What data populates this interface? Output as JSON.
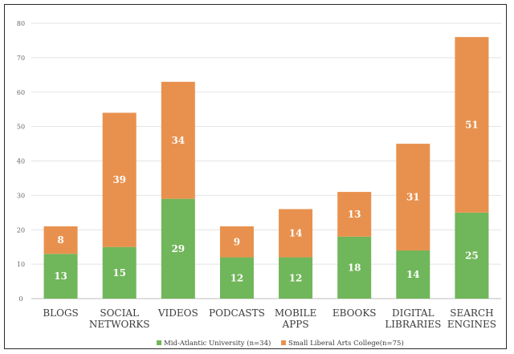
{
  "chart_data": {
    "type": "bar",
    "stacked": true,
    "categories": [
      [
        "BLOGS"
      ],
      [
        "SOCIAL",
        "NETWORKS"
      ],
      [
        "VIDEOS"
      ],
      [
        "PODCASTS"
      ],
      [
        "MOBILE",
        "APPS"
      ],
      [
        "EBOOKS"
      ],
      [
        "DIGITAL",
        "LIBRARIES"
      ],
      [
        "SEARCH",
        "ENGINES"
      ]
    ],
    "series": [
      {
        "name": "Mid-Atlantic University (n=34)",
        "color": "#70b65a",
        "values": [
          13,
          15,
          29,
          12,
          12,
          18,
          14,
          25
        ]
      },
      {
        "name": "Small Liberal Arts College(n=75)",
        "color": "#e8914e",
        "values": [
          8,
          39,
          34,
          9,
          14,
          13,
          31,
          51
        ]
      }
    ],
    "ylim": [
      0,
      80
    ],
    "yticks": [
      0,
      10,
      20,
      30,
      40,
      50,
      60,
      70,
      80
    ],
    "grid": true,
    "legend_position": "bottom",
    "data_labels": true
  }
}
